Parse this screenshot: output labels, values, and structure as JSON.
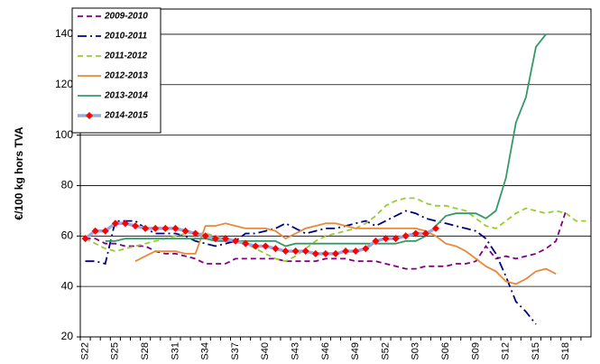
{
  "chart_data": {
    "type": "line",
    "y_label": "€/100 kg hors TVA",
    "categories": [
      "S22",
      null,
      null,
      "S25",
      null,
      null,
      "S28",
      null,
      null,
      "S31",
      null,
      null,
      "S34",
      null,
      null,
      "S37",
      null,
      null,
      "S40",
      null,
      null,
      "S43",
      null,
      null,
      "S46",
      null,
      null,
      "S49",
      null,
      null,
      "S52",
      null,
      null,
      "S03",
      null,
      null,
      "S06",
      null,
      null,
      "S09",
      null,
      null,
      "S12",
      null,
      null,
      "S15",
      null,
      null,
      "S18",
      null,
      null
    ],
    "ylim": [
      20,
      150
    ],
    "yticks": [
      20,
      40,
      60,
      80,
      100,
      120,
      140
    ],
    "grid": true,
    "legend": "top-left",
    "series": [
      {
        "name": "2009-2010",
        "color": "#800080",
        "dash": "dashed",
        "values": [
          59,
          59,
          57,
          57,
          56,
          56,
          56,
          54,
          53,
          53,
          52,
          51,
          49,
          49,
          49,
          51,
          51,
          51,
          51,
          51,
          50,
          50,
          50,
          50,
          51,
          51,
          51,
          50,
          50,
          50,
          49,
          48,
          47,
          47,
          48,
          48,
          48,
          49,
          49,
          50,
          56,
          51,
          52,
          51,
          52,
          53,
          55,
          58,
          70,
          null,
          null
        ]
      },
      {
        "name": "2010-2011",
        "color": "#000080",
        "dash": "dashdot",
        "values": [
          50,
          50,
          49,
          66,
          66,
          66,
          63,
          61,
          61,
          61,
          60,
          58,
          57,
          56,
          57,
          58,
          61,
          61,
          62,
          63,
          65,
          63,
          61,
          62,
          63,
          63,
          64,
          65,
          66,
          64,
          66,
          68,
          70,
          69,
          67,
          66,
          65,
          64,
          63,
          62,
          59,
          53,
          44,
          34,
          30,
          25,
          null,
          null,
          null,
          null,
          null
        ]
      },
      {
        "name": "2011-2012",
        "color": "#99cc33",
        "dash": "dashed",
        "values": [
          59,
          57,
          55,
          54,
          55,
          56,
          57,
          58,
          59,
          60,
          61,
          61,
          61,
          60,
          59,
          58,
          57,
          55,
          53,
          51,
          50,
          52,
          55,
          58,
          60,
          61,
          62,
          63,
          65,
          68,
          72,
          74,
          75,
          75,
          73,
          72,
          72,
          71,
          70,
          67,
          64,
          63,
          66,
          69,
          71,
          70,
          69,
          70,
          69,
          66,
          66
        ]
      },
      {
        "name": "2012-2013",
        "color": "#e8883a",
        "dash": "solid",
        "values": [
          null,
          null,
          null,
          null,
          null,
          50,
          52,
          54,
          54,
          54,
          53,
          53,
          64,
          64,
          65,
          64,
          63,
          63,
          63,
          62,
          59,
          61,
          63,
          64,
          65,
          65,
          64,
          63,
          63,
          63,
          63,
          63,
          63,
          63,
          62,
          60,
          57,
          56,
          54,
          51,
          48,
          46,
          42,
          41,
          43,
          46,
          47,
          45,
          null,
          null,
          null
        ]
      },
      {
        "name": "2013-2014",
        "color": "#339966",
        "dash": "solid",
        "values": [
          null,
          null,
          58,
          58,
          59,
          59,
          59,
          59,
          59,
          59,
          59,
          59,
          59,
          58,
          58,
          58,
          58,
          58,
          58,
          58,
          56,
          57,
          57,
          57,
          57,
          57,
          57,
          57,
          57,
          57,
          57,
          57,
          58,
          58,
          60,
          64,
          68,
          69,
          69,
          69,
          67,
          70,
          83,
          105,
          115,
          135,
          140,
          null,
          null,
          null,
          null
        ]
      },
      {
        "name": "2014-2015",
        "color": "#99aadd",
        "marker_color": "#ff0000",
        "dash": "solid",
        "values": [
          59,
          62,
          62,
          65,
          65,
          64,
          63,
          63,
          63,
          63,
          62,
          61,
          60,
          59,
          59,
          58,
          57,
          56,
          56,
          55,
          54,
          54,
          54,
          53,
          53,
          53,
          54,
          54,
          55,
          58,
          59,
          59,
          60,
          61,
          61,
          63,
          null,
          null,
          null,
          null,
          null,
          null,
          null,
          null,
          null,
          null,
          null,
          null,
          null,
          null,
          null
        ]
      }
    ]
  }
}
